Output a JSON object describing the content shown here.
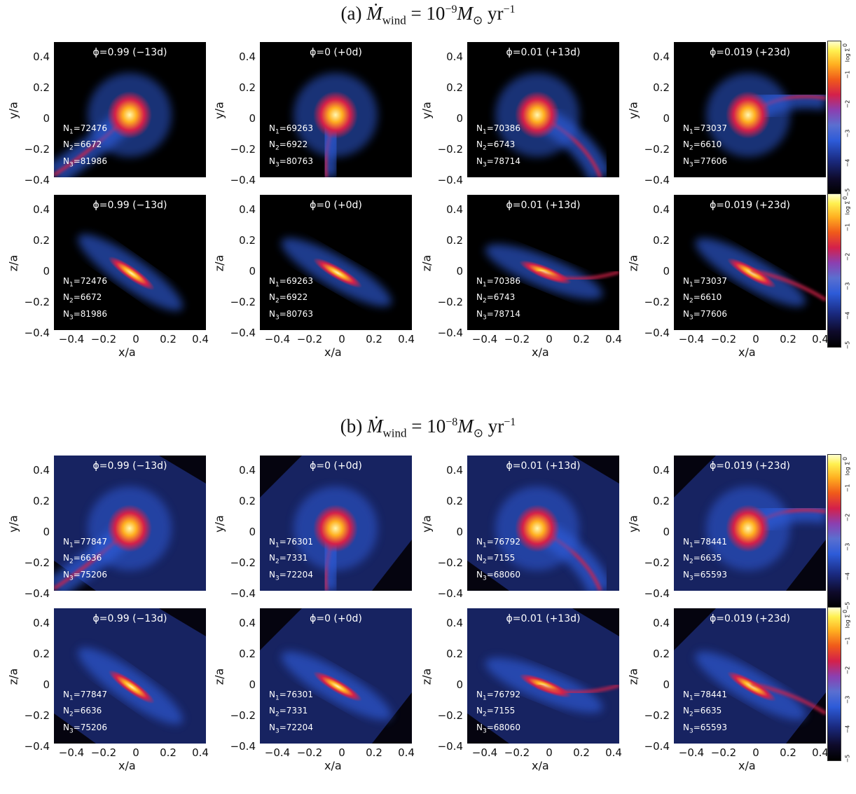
{
  "sections": [
    {
      "label": "(a)",
      "mdot_symbol": "Ṁ",
      "mdot_sub": "wind",
      "equals": "= 10",
      "exp": "−9",
      "unit_main": "M",
      "unit_sub": "⊙",
      "unit_yr": "yr",
      "unit_exp": "−1",
      "top_row": [
        {
          "phase": "ϕ=0.99 (−13d)",
          "n1": "=72476",
          "n2": "=6672",
          "n3": "=81986"
        },
        {
          "phase": "ϕ=0 (+0d)",
          "n1": "=69263",
          "n2": "=6922",
          "n3": "=80763"
        },
        {
          "phase": "ϕ=0.01 (+13d)",
          "n1": "=70386",
          "n2": "=6743",
          "n3": "=78714"
        },
        {
          "phase": "ϕ=0.019 (+23d)",
          "n1": "=73037",
          "n2": "=6610",
          "n3": "=77606"
        }
      ],
      "bottom_row": [
        {
          "phase": "ϕ=0.99 (−13d)",
          "n1": "=72476",
          "n2": "=6672",
          "n3": "=81986"
        },
        {
          "phase": "ϕ=0 (+0d)",
          "n1": "=69263",
          "n2": "=6922",
          "n3": "=80763"
        },
        {
          "phase": "ϕ=0.01 (+13d)",
          "n1": "=70386",
          "n2": "=6743",
          "n3": "=78714"
        },
        {
          "phase": "ϕ=0.019 (+23d)",
          "n1": "=73037",
          "n2": "=6610",
          "n3": "=77606"
        }
      ]
    },
    {
      "label": "(b)",
      "mdot_symbol": "Ṁ",
      "mdot_sub": "wind",
      "equals": "= 10",
      "exp": "−8",
      "unit_main": "M",
      "unit_sub": "⊙",
      "unit_yr": "yr",
      "unit_exp": "−1",
      "top_row": [
        {
          "phase": "ϕ=0.99 (−13d)",
          "n1": "=77847",
          "n2": "=6636",
          "n3": "=75206"
        },
        {
          "phase": "ϕ=0 (+0d)",
          "n1": "=76301",
          "n2": "=7331",
          "n3": "=72204"
        },
        {
          "phase": "ϕ=0.01 (+13d)",
          "n1": "=76792",
          "n2": "=7155",
          "n3": "=68060"
        },
        {
          "phase": "ϕ=0.019 (+23d)",
          "n1": "=78441",
          "n2": "=6635",
          "n3": "=65593"
        }
      ],
      "bottom_row": [
        {
          "phase": "ϕ=0.99 (−13d)",
          "n1": "=77847",
          "n2": "=6636",
          "n3": "=75206"
        },
        {
          "phase": "ϕ=0 (+0d)",
          "n1": "=76301",
          "n2": "=7331",
          "n3": "=72204"
        },
        {
          "phase": "ϕ=0.01 (+13d)",
          "n1": "=76792",
          "n2": "=7155",
          "n3": "=68060"
        },
        {
          "phase": "ϕ=0.019 (+23d)",
          "n1": "=78441",
          "n2": "=6635",
          "n3": "=65593"
        }
      ]
    }
  ],
  "axes": {
    "y_top_label": "y/a",
    "y_bottom_label": "z/a",
    "x_label": "x/a",
    "y_ticks": [
      "0.4",
      "0.2",
      "0",
      "−0.2",
      "−0.4"
    ],
    "x_ticks": [
      "−0.4",
      "−0.2",
      "0",
      "0.2",
      "0.4"
    ]
  },
  "colorbar": {
    "label": "log Σ",
    "ticks": [
      "0",
      "−1",
      "−2",
      "−3",
      "−4",
      "−5"
    ]
  },
  "count_prefix": {
    "n1": "N",
    "n2": "N",
    "n3": "N",
    "s1": "1",
    "s2": "2",
    "s3": "3"
  },
  "colors": {
    "panel_bg": "#000000",
    "low": "#2d5bd8",
    "mid": "#d4204a",
    "high": "#ffb020",
    "peak": "#fff7b0"
  }
}
